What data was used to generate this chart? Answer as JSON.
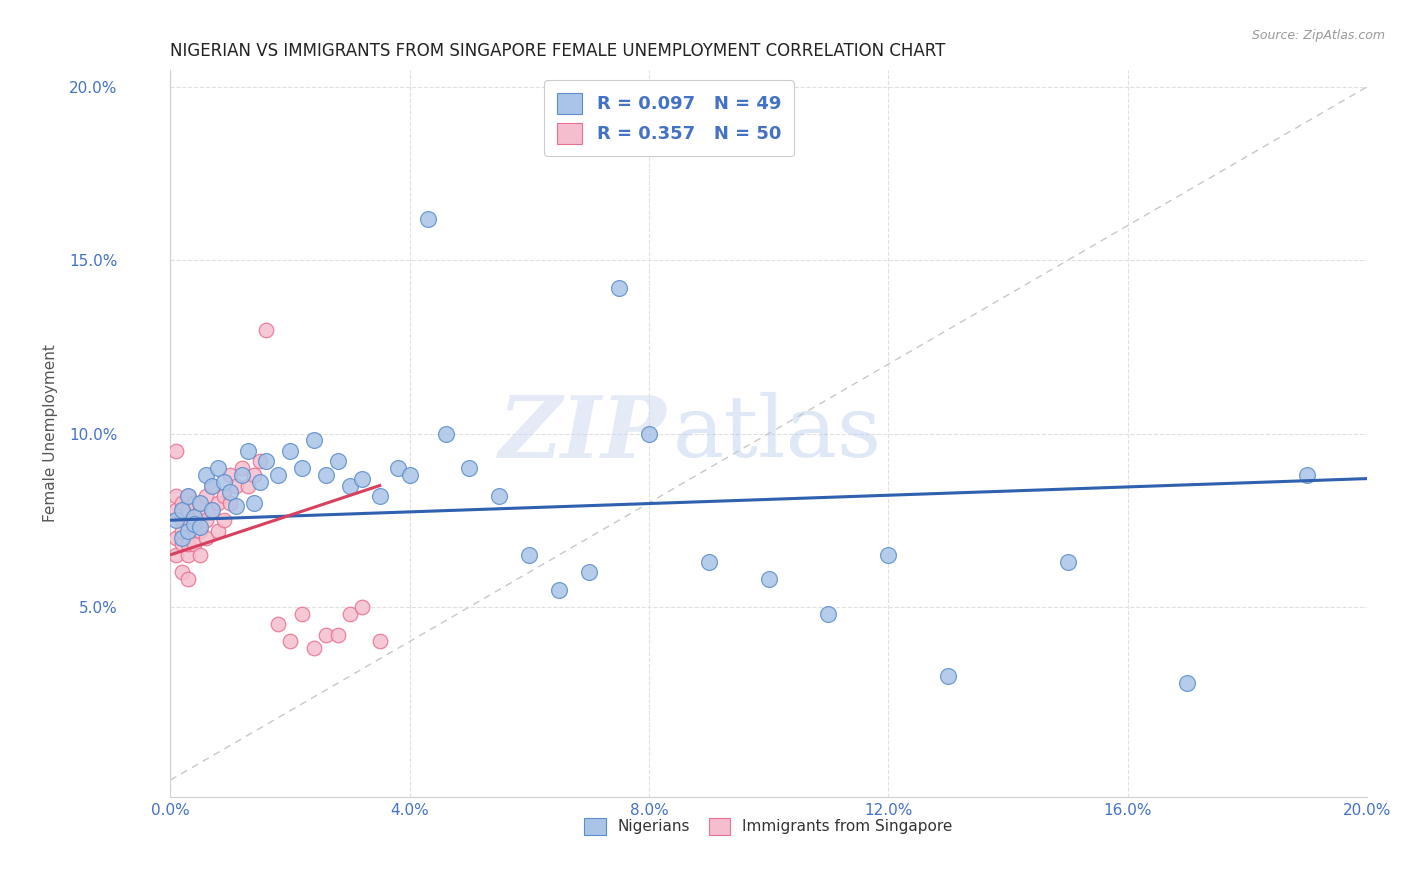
{
  "title": "NIGERIAN VS IMMIGRANTS FROM SINGAPORE FEMALE UNEMPLOYMENT CORRELATION CHART",
  "source": "Source: ZipAtlas.com",
  "ylabel": "Female Unemployment",
  "xlim": [
    0.0,
    0.2
  ],
  "ylim": [
    -0.005,
    0.205
  ],
  "series1_color": "#aac4e8",
  "series2_color": "#f5bece",
  "series1_edge": "#5b8ec9",
  "series2_edge": "#e87090",
  "trendline1_color": "#3060b0",
  "trendline2_color": "#d84060",
  "diagonal_color": "#c8c8c8",
  "watermark_zip": "ZIP",
  "watermark_atlas": "atlas",
  "watermark_color_zip": "#c8d8ee",
  "watermark_color_atlas": "#b0c8e8",
  "legend1_label": "R = 0.097   N = 49",
  "legend2_label": "R = 0.357   N = 50",
  "bottom_legend1": "Nigerians",
  "bottom_legend2": "Immigrants from Singapore",
  "nigerians_x": [
    0.001,
    0.002,
    0.002,
    0.003,
    0.003,
    0.004,
    0.004,
    0.005,
    0.005,
    0.006,
    0.007,
    0.007,
    0.008,
    0.009,
    0.01,
    0.011,
    0.012,
    0.013,
    0.014,
    0.015,
    0.016,
    0.018,
    0.02,
    0.022,
    0.024,
    0.026,
    0.028,
    0.03,
    0.032,
    0.035,
    0.038,
    0.04,
    0.043,
    0.046,
    0.05,
    0.055,
    0.06,
    0.065,
    0.07,
    0.075,
    0.08,
    0.09,
    0.1,
    0.11,
    0.12,
    0.13,
    0.15,
    0.17,
    0.19
  ],
  "nigerians_y": [
    0.075,
    0.078,
    0.07,
    0.072,
    0.082,
    0.076,
    0.074,
    0.08,
    0.073,
    0.088,
    0.085,
    0.078,
    0.09,
    0.086,
    0.083,
    0.079,
    0.088,
    0.095,
    0.08,
    0.086,
    0.092,
    0.088,
    0.095,
    0.09,
    0.098,
    0.088,
    0.092,
    0.085,
    0.087,
    0.082,
    0.09,
    0.088,
    0.162,
    0.1,
    0.09,
    0.082,
    0.065,
    0.055,
    0.06,
    0.142,
    0.1,
    0.063,
    0.058,
    0.048,
    0.065,
    0.03,
    0.063,
    0.028,
    0.088
  ],
  "singapore_x": [
    0.001,
    0.001,
    0.001,
    0.001,
    0.001,
    0.002,
    0.002,
    0.002,
    0.002,
    0.002,
    0.003,
    0.003,
    0.003,
    0.003,
    0.003,
    0.003,
    0.004,
    0.004,
    0.004,
    0.004,
    0.005,
    0.005,
    0.005,
    0.005,
    0.006,
    0.006,
    0.006,
    0.007,
    0.007,
    0.008,
    0.008,
    0.009,
    0.009,
    0.01,
    0.01,
    0.011,
    0.012,
    0.013,
    0.014,
    0.015,
    0.016,
    0.018,
    0.02,
    0.022,
    0.024,
    0.026,
    0.028,
    0.03,
    0.032,
    0.035
  ],
  "singapore_y": [
    0.095,
    0.078,
    0.082,
    0.07,
    0.065,
    0.075,
    0.08,
    0.068,
    0.072,
    0.06,
    0.078,
    0.072,
    0.082,
    0.065,
    0.068,
    0.058,
    0.075,
    0.08,
    0.072,
    0.068,
    0.078,
    0.072,
    0.065,
    0.08,
    0.075,
    0.082,
    0.07,
    0.078,
    0.085,
    0.08,
    0.072,
    0.082,
    0.075,
    0.088,
    0.08,
    0.085,
    0.09,
    0.085,
    0.088,
    0.092,
    0.13,
    0.045,
    0.04,
    0.048,
    0.038,
    0.042,
    0.042,
    0.048,
    0.05,
    0.04
  ],
  "trendline1_x": [
    0.0,
    0.2
  ],
  "trendline1_y": [
    0.075,
    0.087
  ],
  "trendline2_x": [
    0.0,
    0.035
  ],
  "trendline2_y": [
    0.065,
    0.085
  ]
}
